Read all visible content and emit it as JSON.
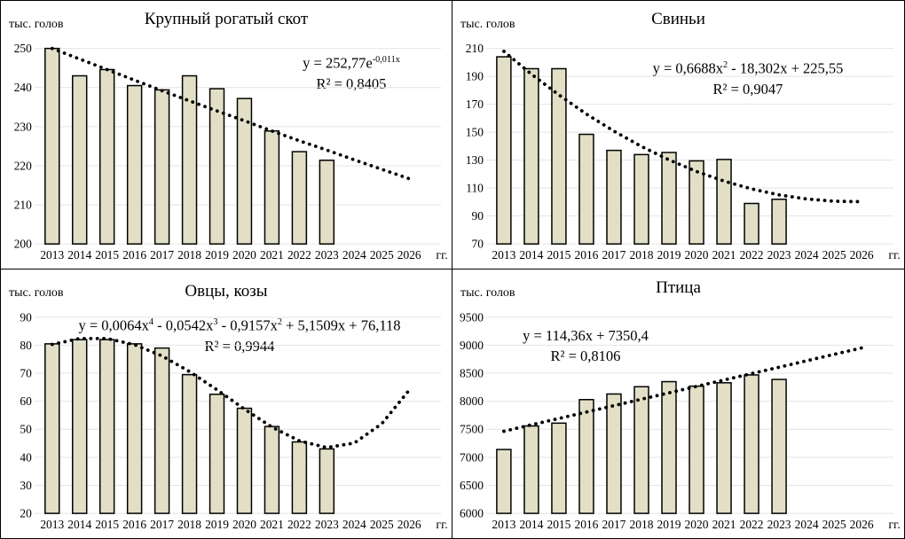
{
  "figure": {
    "unit_label": "тыс. голов",
    "x_axis_suffix": "гг.",
    "colors": {
      "bar_fill": "#e2dfc6",
      "bar_stroke": "#000000",
      "trend_color": "#000000",
      "gridline_color": "#e4e4e4",
      "text_color": "#000000",
      "panel_border": "#000000"
    }
  },
  "chart_data": [
    {
      "type": "bar",
      "title": "Крупный рогатый скот",
      "ylabel": "тыс. голов",
      "xlabel": "гг.",
      "categories": [
        "2013",
        "2014",
        "2015",
        "2016",
        "2017",
        "2018",
        "2019",
        "2020",
        "2021",
        "2022",
        "2023",
        "2024",
        "2025",
        "2026"
      ],
      "values": [
        250,
        243,
        244.6,
        240.5,
        239.4,
        243,
        239.7,
        237.2,
        228.9,
        223.6,
        221.4,
        null,
        null,
        null
      ],
      "ylim": [
        200,
        250
      ],
      "y_step": 10,
      "grid": true,
      "legend": "none",
      "trend": {
        "style": "dotted",
        "equation": "y = 252,77e-0,011x",
        "equation_segments": [
          {
            "text": "y = 252,77e"
          },
          {
            "text": "-0,011x",
            "sup": true
          }
        ],
        "r2": "R² = 0,8405",
        "values": [
          250.0,
          247.3,
          244.6,
          241.9,
          239.2,
          236.6,
          234.0,
          231.5,
          228.9,
          226.4,
          224.0,
          221.5,
          219.1,
          216.7
        ]
      }
    },
    {
      "type": "bar",
      "title": "Свиньи",
      "ylabel": "тыс. голов",
      "xlabel": "гг.",
      "categories": [
        "2013",
        "2014",
        "2015",
        "2016",
        "2017",
        "2018",
        "2019",
        "2020",
        "2021",
        "2022",
        "2023",
        "2024",
        "2025",
        "2026"
      ],
      "values": [
        204,
        195.5,
        195.5,
        148.5,
        137,
        134,
        135.5,
        129.5,
        130.5,
        99,
        102,
        null,
        null,
        null
      ],
      "ylim": [
        70,
        210
      ],
      "y_step": 20,
      "grid": true,
      "legend": "none",
      "trend": {
        "style": "dotted",
        "equation": "y = 0,6688x2 - 18,302x + 225,55",
        "equation_segments": [
          {
            "text": "y = 0,6688x"
          },
          {
            "text": "2",
            "sup": true
          },
          {
            "text": " - 18,302x + 225,55"
          }
        ],
        "r2": "R² = 0,9047",
        "values": [
          207.9,
          191.6,
          176.7,
          163.0,
          150.8,
          139.8,
          130.2,
          121.9,
          115.0,
          109.4,
          105.1,
          102.2,
          100.6,
          100.3
        ]
      }
    },
    {
      "type": "bar",
      "title": "Овцы, козы",
      "ylabel": "тыс. голов",
      "xlabel": "гг.",
      "categories": [
        "2013",
        "2014",
        "2015",
        "2016",
        "2017",
        "2018",
        "2019",
        "2020",
        "2021",
        "2022",
        "2023",
        "2024",
        "2025",
        "2026"
      ],
      "values": [
        80.5,
        82,
        82,
        80.5,
        79,
        69.5,
        62.5,
        57.5,
        51,
        45.5,
        43,
        null,
        null,
        null
      ],
      "ylim": [
        20,
        90
      ],
      "y_step": 10,
      "grid": true,
      "legend": "none",
      "trend": {
        "style": "dotted",
        "equation": "y = 0,0064x4 - 0,0542x3 - 0,9157x2 + 5,1509x + 76,118",
        "equation_segments": [
          {
            "text": "y = 0,0064x"
          },
          {
            "text": "4",
            "sup": true
          },
          {
            "text": " - 0,0542x"
          },
          {
            "text": "3",
            "sup": true
          },
          {
            "text": " - 0,9157x"
          },
          {
            "text": "2",
            "sup": true
          },
          {
            "text": " + 5,1509x + 76,118"
          }
        ],
        "r2": "R² = 0,9944",
        "values": [
          80.3,
          82.4,
          82.4,
          80.2,
          76.2,
          70.6,
          64.1,
          57.2,
          50.8,
          45.9,
          43.5,
          45.1,
          52.0,
          64.0
        ]
      }
    },
    {
      "type": "bar",
      "title": "Птица",
      "ylabel": "тыс. голов",
      "xlabel": "гг.",
      "categories": [
        "2013",
        "2014",
        "2015",
        "2016",
        "2017",
        "2018",
        "2019",
        "2020",
        "2021",
        "2022",
        "2023",
        "2024",
        "2025",
        "2026"
      ],
      "values": [
        7140,
        7560,
        7610,
        8030,
        8130,
        8260,
        8350,
        8270,
        8330,
        8470,
        8390,
        null,
        null,
        null
      ],
      "ylim": [
        6000,
        9500
      ],
      "y_step": 500,
      "grid": true,
      "legend": "none",
      "trend": {
        "style": "dotted",
        "equation": "y = 114,36x + 7350,4",
        "equation_segments": [
          {
            "text": "y = 114,36x + 7350,4"
          }
        ],
        "r2": "R² = 0,8106",
        "values": [
          7464.8,
          7579.1,
          7693.5,
          7807.8,
          7922.2,
          8036.6,
          8150.9,
          8265.3,
          8379.6,
          8494.0,
          8608.4,
          8722.7,
          8837.1,
          8951.4
        ]
      }
    }
  ]
}
